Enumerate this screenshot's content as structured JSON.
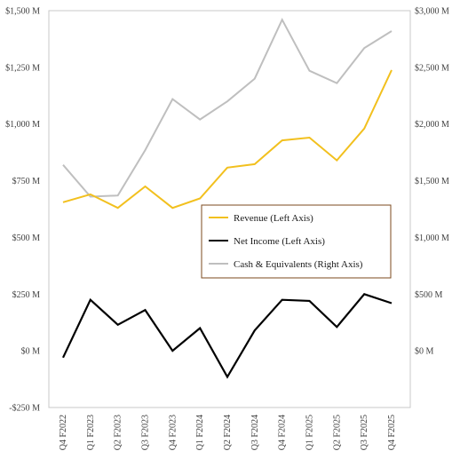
{
  "chart_data": {
    "type": "line",
    "title": "",
    "xlabel": "",
    "ylabel": "",
    "categories": [
      "Q4 F2022",
      "Q1 F2023",
      "Q2 F2023",
      "Q3 F2023",
      "Q4 F2023",
      "Q1 F2024",
      "Q2 F2024",
      "Q3 F2024",
      "Q4 F2024",
      "Q1 F2025",
      "Q2 F2025",
      "Q3 F2025",
      "Q4 F2025"
    ],
    "left_axis": {
      "ylim": [
        -250,
        1500
      ],
      "ticks": [
        -250,
        0,
        250,
        500,
        750,
        1000,
        1250,
        1500
      ],
      "tick_labels": [
        "-$250 M",
        "$0 M",
        "$250 M",
        "$500 M",
        "$750 M",
        "$1,000 M",
        "$1,250 M",
        "$1,500 M"
      ]
    },
    "right_axis": {
      "ylim": [
        -500,
        3000
      ],
      "ticks": [
        0,
        500,
        1000,
        1500,
        2000,
        2500,
        3000
      ],
      "tick_labels": [
        "$0 M",
        "$500 M",
        "$1,000 M",
        "$1,500 M",
        "$2,000 M",
        "$2,500 M",
        "$3,000 M"
      ]
    },
    "series": [
      {
        "name": "Revenue (Left Axis)",
        "axis": "left",
        "color": "#f2c01e",
        "values": [
          655,
          690,
          630,
          725,
          630,
          672,
          808,
          823,
          928,
          940,
          840,
          980,
          1238
        ]
      },
      {
        "name": "Net Income (Left Axis)",
        "axis": "left",
        "color": "#000000",
        "values": [
          -30,
          225,
          115,
          180,
          0,
          100,
          -115,
          90,
          225,
          220,
          105,
          250,
          210
        ]
      },
      {
        "name": "Cash & Equivalents (Right Axis)",
        "axis": "right",
        "color": "#bfbfbf",
        "values": [
          1640,
          1360,
          1370,
          1770,
          2220,
          2040,
          2200,
          2400,
          2920,
          2470,
          2360,
          2670,
          2820
        ]
      }
    ],
    "grid": false,
    "legend": "center-right"
  }
}
